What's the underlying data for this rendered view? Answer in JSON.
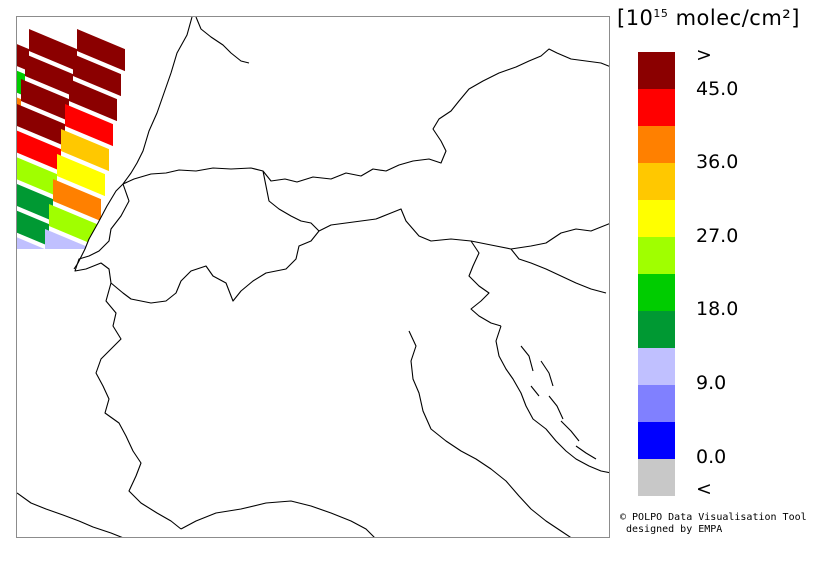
{
  "legend": {
    "unit_prefix": "[10",
    "unit_exp": "15",
    "unit_suffix": " molec/cm²]",
    "colors": [
      "#8b0000",
      "#ff0000",
      "#ff8000",
      "#ffc800",
      "#ffff00",
      "#a0ff00",
      "#00cc00",
      "#009933",
      "#c0c0ff",
      "#8080ff",
      "#0000ff",
      "#c8c8c8"
    ],
    "ticks": [
      ">",
      "45.0",
      "36.0",
      "27.0",
      "18.0",
      "9.0",
      "0.0",
      "<"
    ]
  },
  "credit": {
    "line1": "© POLPO Data Visualisation Tool",
    "line2": "designed by EMPA"
  },
  "overlay": {
    "cells": [
      {
        "row": 0,
        "col": 0,
        "color": "#8b0000"
      },
      {
        "row": 0,
        "col": 1,
        "color": "#8b0000"
      },
      {
        "row": 0,
        "col": 2,
        "color": "#8b0000"
      },
      {
        "row": 1,
        "col": 0,
        "color": "#00cc00"
      },
      {
        "row": 1,
        "col": 1,
        "color": "#8b0000"
      },
      {
        "row": 1,
        "col": 2,
        "color": "#8b0000"
      },
      {
        "row": 2,
        "col": 0,
        "color": "#ff8000"
      },
      {
        "row": 2,
        "col": 1,
        "color": "#8b0000"
      },
      {
        "row": 2,
        "col": 2,
        "color": "#8b0000"
      },
      {
        "row": 3,
        "col": 0,
        "color": "#a0ff00"
      },
      {
        "row": 3,
        "col": 1,
        "color": "#8b0000"
      },
      {
        "row": 3,
        "col": 2,
        "color": "#ff0000"
      },
      {
        "row": 4,
        "col": 0,
        "color": "#a0ff00"
      },
      {
        "row": 4,
        "col": 1,
        "color": "#ff0000"
      },
      {
        "row": 4,
        "col": 2,
        "color": "#ffc800"
      },
      {
        "row": 5,
        "col": 0,
        "color": "#009933"
      },
      {
        "row": 5,
        "col": 1,
        "color": "#a0ff00"
      },
      {
        "row": 5,
        "col": 2,
        "color": "#ffff00"
      },
      {
        "row": 6,
        "col": 0,
        "color": "#00cc00"
      },
      {
        "row": 6,
        "col": 1,
        "color": "#009933"
      },
      {
        "row": 6,
        "col": 2,
        "color": "#ff8000"
      },
      {
        "row": 7,
        "col": 0,
        "color": "#009933"
      },
      {
        "row": 7,
        "col": 1,
        "color": "#009933"
      },
      {
        "row": 7,
        "col": 2,
        "color": "#a0ff00"
      },
      {
        "row": 8,
        "col": 0,
        "color": "#c0c0ff"
      },
      {
        "row": 8,
        "col": 1,
        "color": "#c0c0ff"
      },
      {
        "row": 8,
        "col": 2,
        "color": "#c0c0ff"
      },
      {
        "row": 9,
        "col": 0,
        "color": "#c0c0ff"
      },
      {
        "row": 9,
        "col": 1,
        "color": "#c0c0ff"
      }
    ]
  }
}
